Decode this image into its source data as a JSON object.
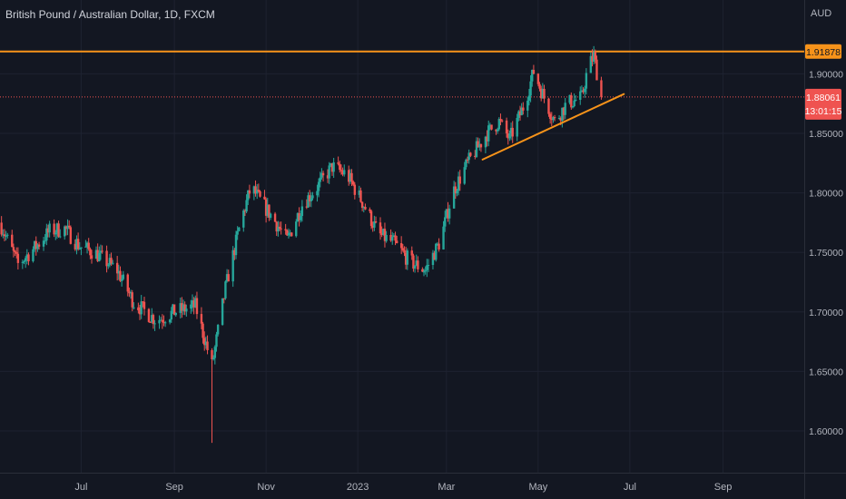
{
  "header": {
    "title": "British Pound / Australian Dollar, 1D, FXCM",
    "currency": "AUD"
  },
  "colors": {
    "background": "#131722",
    "grid": "#1e2230",
    "up": "#26a69a",
    "down": "#ef5350",
    "resistance": "#f7931a",
    "trendline": "#f7931a",
    "price_line": "#ef5350",
    "axis_text": "#b2b5be"
  },
  "chart_data": {
    "type": "candlestick",
    "title": "British Pound / Australian Dollar, 1D, FXCM",
    "y_unit": "AUD",
    "ylim": [
      1.575,
      1.95
    ],
    "y_ticks": [
      "1.60000",
      "1.65000",
      "1.70000",
      "1.75000",
      "1.80000",
      "1.85000",
      "1.90000"
    ],
    "x_ticks": [
      "Jul",
      "Sep",
      "Nov",
      "2023",
      "Mar",
      "May",
      "Jul",
      "Sep"
    ],
    "x_tick_dates": [
      "2022-07-01",
      "2022-09-01",
      "2022-11-01",
      "2023-01-01",
      "2023-03-01",
      "2023-05-01",
      "2023-07-01",
      "2023-09-01"
    ],
    "x_range": [
      "2022-05-08",
      "2023-10-25"
    ],
    "grid": true,
    "anchors": [
      [
        "2022-05-08",
        1.775
      ],
      [
        "2022-05-20",
        1.74
      ],
      [
        "2022-06-01",
        1.755
      ],
      [
        "2022-06-10",
        1.768
      ],
      [
        "2022-06-20",
        1.77
      ],
      [
        "2022-06-30",
        1.755
      ],
      [
        "2022-07-10",
        1.75
      ],
      [
        "2022-07-25",
        1.735
      ],
      [
        "2022-08-05",
        1.708
      ],
      [
        "2022-08-20",
        1.693
      ],
      [
        "2022-09-01",
        1.7
      ],
      [
        "2022-09-15",
        1.705
      ],
      [
        "2022-09-26",
        1.655
      ],
      [
        "2022-10-05",
        1.72
      ],
      [
        "2022-10-15",
        1.775
      ],
      [
        "2022-10-22",
        1.805
      ],
      [
        "2022-10-30",
        1.79
      ],
      [
        "2022-11-05",
        1.78
      ],
      [
        "2022-11-15",
        1.76
      ],
      [
        "2022-11-25",
        1.79
      ],
      [
        "2022-12-05",
        1.805
      ],
      [
        "2022-12-15",
        1.822
      ],
      [
        "2022-12-25",
        1.815
      ],
      [
        "2023-01-05",
        1.79
      ],
      [
        "2023-01-15",
        1.765
      ],
      [
        "2023-01-25",
        1.758
      ],
      [
        "2023-02-05",
        1.742
      ],
      [
        "2023-02-15",
        1.735
      ],
      [
        "2023-02-25",
        1.76
      ],
      [
        "2023-03-05",
        1.8
      ],
      [
        "2023-03-15",
        1.825
      ],
      [
        "2023-03-28",
        1.85
      ],
      [
        "2023-04-05",
        1.86
      ],
      [
        "2023-04-12",
        1.845
      ],
      [
        "2023-04-22",
        1.875
      ],
      [
        "2023-04-28",
        1.902
      ],
      [
        "2023-05-05",
        1.88
      ],
      [
        "2023-05-12",
        1.86
      ],
      [
        "2023-05-20",
        1.875
      ],
      [
        "2023-05-30",
        1.88
      ],
      [
        "2023-06-03",
        1.905
      ],
      [
        "2023-06-07",
        1.915
      ],
      [
        "2023-06-12",
        1.881
      ]
    ],
    "spike_low": {
      "date": "2022-09-26",
      "value": 1.59
    },
    "resistance_level": 1.91878,
    "resistance_label": "1.91878",
    "current_price": 1.88061,
    "current_price_label": "1.88061",
    "countdown": "13:01:15",
    "trendline": {
      "from": [
        "2023-03-25",
        1.828
      ],
      "to": [
        "2023-06-27",
        1.883
      ]
    }
  }
}
